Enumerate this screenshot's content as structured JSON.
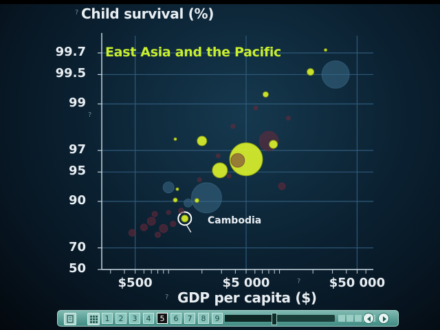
{
  "chart_data": {
    "type": "scatter",
    "ylabel": "Child survival (%)",
    "xlabel": "GDP per capita ($)",
    "x_scale": "log",
    "y_scale": "mortality-inverse",
    "xlim": [
      250,
      70000
    ],
    "ylim": [
      50,
      99.8
    ],
    "x_ticks": [
      {
        "value": 500,
        "label": "$500"
      },
      {
        "value": 5000,
        "label": "$5 000"
      },
      {
        "value": 50000,
        "label": "$50 000"
      }
    ],
    "y_ticks": [
      {
        "value": 99.7,
        "label": "99.7"
      },
      {
        "value": 99.5,
        "label": "99.5"
      },
      {
        "value": 99,
        "label": "99"
      },
      {
        "value": 97,
        "label": "97"
      },
      {
        "value": 95,
        "label": "95"
      },
      {
        "value": 90,
        "label": "90"
      },
      {
        "value": 70,
        "label": "70"
      },
      {
        "value": 50,
        "label": "50"
      }
    ],
    "grid": true,
    "highlight_region": "East Asia and the Pacific",
    "highlight_color": "#d9f02b",
    "series": [
      {
        "color": "#d9f02b",
        "points": [
          {
            "x": 1400,
            "y": 85,
            "size": 5,
            "label": "Cambodia",
            "selected": true
          },
          {
            "x": 5000,
            "y": 96.3,
            "size": 24
          },
          {
            "x": 2900,
            "y": 95.2,
            "size": 11
          },
          {
            "x": 2000,
            "y": 97.6,
            "size": 7
          },
          {
            "x": 8800,
            "y": 97.4,
            "size": 6
          },
          {
            "x": 7500,
            "y": 99.2,
            "size": 4
          },
          {
            "x": 19000,
            "y": 99.53,
            "size": 5
          },
          {
            "x": 26000,
            "y": 99.72,
            "size": 2
          },
          {
            "x": 1200,
            "y": 92.5,
            "size": 2
          },
          {
            "x": 1150,
            "y": 90.3,
            "size": 3
          },
          {
            "x": 1800,
            "y": 90.2,
            "size": 3
          },
          {
            "x": 1150,
            "y": 97.7,
            "size": 2
          }
        ]
      },
      {
        "color": "#3a6a86",
        "points": [
          {
            "x": 32000,
            "y": 99.5,
            "size": 20
          },
          {
            "x": 2200,
            "y": 90.8,
            "size": 22
          },
          {
            "x": 1000,
            "y": 92.8,
            "size": 8
          },
          {
            "x": 1500,
            "y": 89.6,
            "size": 6
          }
        ]
      },
      {
        "color": "#6b2a3a",
        "points": [
          {
            "x": 8000,
            "y": 97.6,
            "size": 14
          },
          {
            "x": 4200,
            "y": 96.2,
            "size": 10
          },
          {
            "x": 700,
            "y": 84,
            "size": 6
          },
          {
            "x": 900,
            "y": 81,
            "size": 6
          },
          {
            "x": 600,
            "y": 81.5,
            "size": 5
          },
          {
            "x": 1100,
            "y": 83,
            "size": 4
          },
          {
            "x": 1300,
            "y": 87.5,
            "size": 4
          },
          {
            "x": 10500,
            "y": 93,
            "size": 5
          },
          {
            "x": 3800,
            "y": 98.3,
            "size": 3
          },
          {
            "x": 6100,
            "y": 98.9,
            "size": 3
          },
          {
            "x": 2800,
            "y": 96.6,
            "size": 3
          },
          {
            "x": 12000,
            "y": 98.6,
            "size": 3
          },
          {
            "x": 1900,
            "y": 94,
            "size": 3
          },
          {
            "x": 750,
            "y": 86.5,
            "size": 4
          },
          {
            "x": 470,
            "y": 79,
            "size": 5
          },
          {
            "x": 1000,
            "y": 87,
            "size": 3
          },
          {
            "x": 800,
            "y": 78,
            "size": 4
          },
          {
            "x": 3500,
            "y": 94.5,
            "size": 3
          }
        ]
      }
    ]
  },
  "controls": {
    "pages": [
      "1",
      "2",
      "3",
      "4",
      "5",
      "6",
      "7",
      "8",
      "9"
    ],
    "active_page": "5",
    "progress": 0.45,
    "icons": [
      "notes-icon",
      "grid-icon",
      "prev-icon",
      "next-icon"
    ]
  }
}
